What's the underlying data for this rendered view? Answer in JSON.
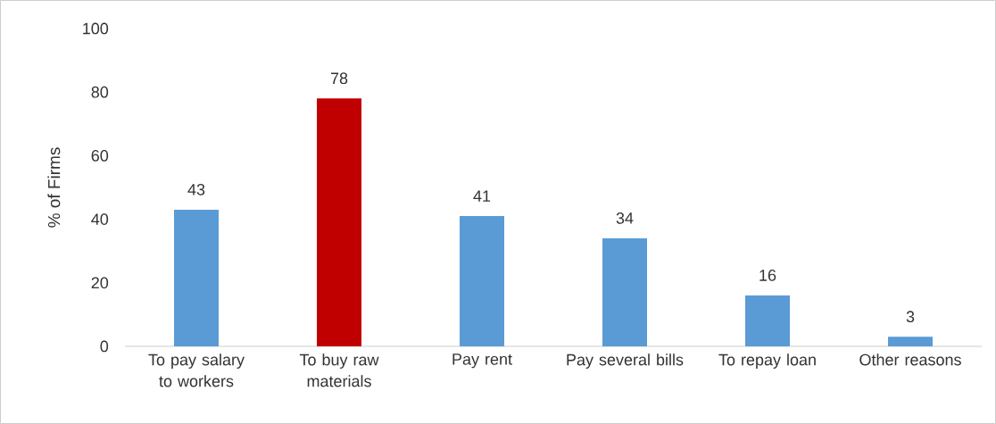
{
  "chart_data": {
    "type": "bar",
    "ylabel": "% of Firms",
    "categories": [
      "To pay salary to workers",
      "To buy raw materials",
      "Pay rent",
      "Pay several bills",
      "To repay loan",
      "Other reasons"
    ],
    "values": [
      43,
      78,
      41,
      34,
      16,
      3
    ],
    "colors": [
      "#5b9bd5",
      "#c00000",
      "#5b9bd5",
      "#5b9bd5",
      "#5b9bd5",
      "#5b9bd5"
    ],
    "ylim": [
      0,
      100
    ],
    "yticks": [
      0,
      20,
      40,
      60,
      80,
      100
    ],
    "data_labels": true,
    "grid": false
  }
}
